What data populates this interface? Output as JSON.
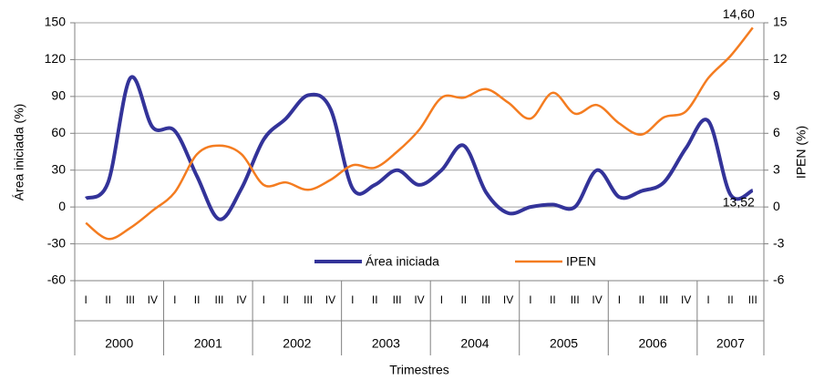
{
  "chart_data": {
    "type": "line",
    "xlabel": "Trimestres",
    "ylabel": "Área iniciada  (%)",
    "y2label": "IPEN   (%)",
    "categories": [
      "I",
      "II",
      "III",
      "IV",
      "I",
      "II",
      "III",
      "IV",
      "I",
      "II",
      "III",
      "IV",
      "I",
      "II",
      "III",
      "IV",
      "I",
      "II",
      "III",
      "IV",
      "I",
      "II",
      "III",
      "IV",
      "I",
      "II",
      "III",
      "IV",
      "I",
      "II",
      "III"
    ],
    "years": [
      "2000",
      "2001",
      "2002",
      "2003",
      "2004",
      "2005",
      "2006",
      "2007"
    ],
    "ylim": [
      -60,
      150
    ],
    "yticks": [
      -60,
      -30,
      0,
      30,
      60,
      90,
      120,
      150
    ],
    "y2lim": [
      -6,
      15
    ],
    "y2ticks": [
      -6,
      -3,
      0,
      3,
      6,
      9,
      12,
      15
    ],
    "grid": true,
    "legend": "bottom",
    "series": [
      {
        "name": "Área iniciada",
        "color": "#333399",
        "values": [
          7,
          20,
          105,
          65,
          62,
          25,
          -10,
          15,
          55,
          72,
          91,
          80,
          15,
          18,
          30,
          18,
          30,
          50,
          12,
          -5,
          0,
          2,
          0,
          30,
          8,
          13,
          20,
          48,
          70,
          10,
          13.52
        ],
        "value_labels": [
          null,
          null,
          null,
          null,
          null,
          null,
          null,
          null,
          null,
          null,
          null,
          null,
          null,
          null,
          null,
          null,
          null,
          null,
          null,
          null,
          null,
          null,
          null,
          null,
          null,
          null,
          null,
          null,
          null,
          null,
          "13,52"
        ]
      },
      {
        "name": "IPEN",
        "color": "#f47c20",
        "axis": "y2",
        "values": [
          -1.3,
          -2.6,
          -1.7,
          -0.3,
          1.2,
          4.3,
          5.0,
          4.3,
          1.8,
          2.0,
          1.4,
          2.2,
          3.4,
          3.2,
          4.5,
          6.3,
          8.9,
          8.9,
          9.6,
          8.5,
          7.2,
          9.3,
          7.6,
          8.3,
          6.8,
          5.9,
          7.3,
          7.8,
          10.5,
          12.3,
          14.6
        ],
        "value_labels": [
          null,
          null,
          null,
          null,
          null,
          null,
          null,
          null,
          null,
          null,
          null,
          null,
          null,
          null,
          null,
          null,
          null,
          null,
          null,
          null,
          null,
          null,
          null,
          null,
          null,
          null,
          null,
          null,
          null,
          null,
          "14,60"
        ]
      }
    ]
  }
}
